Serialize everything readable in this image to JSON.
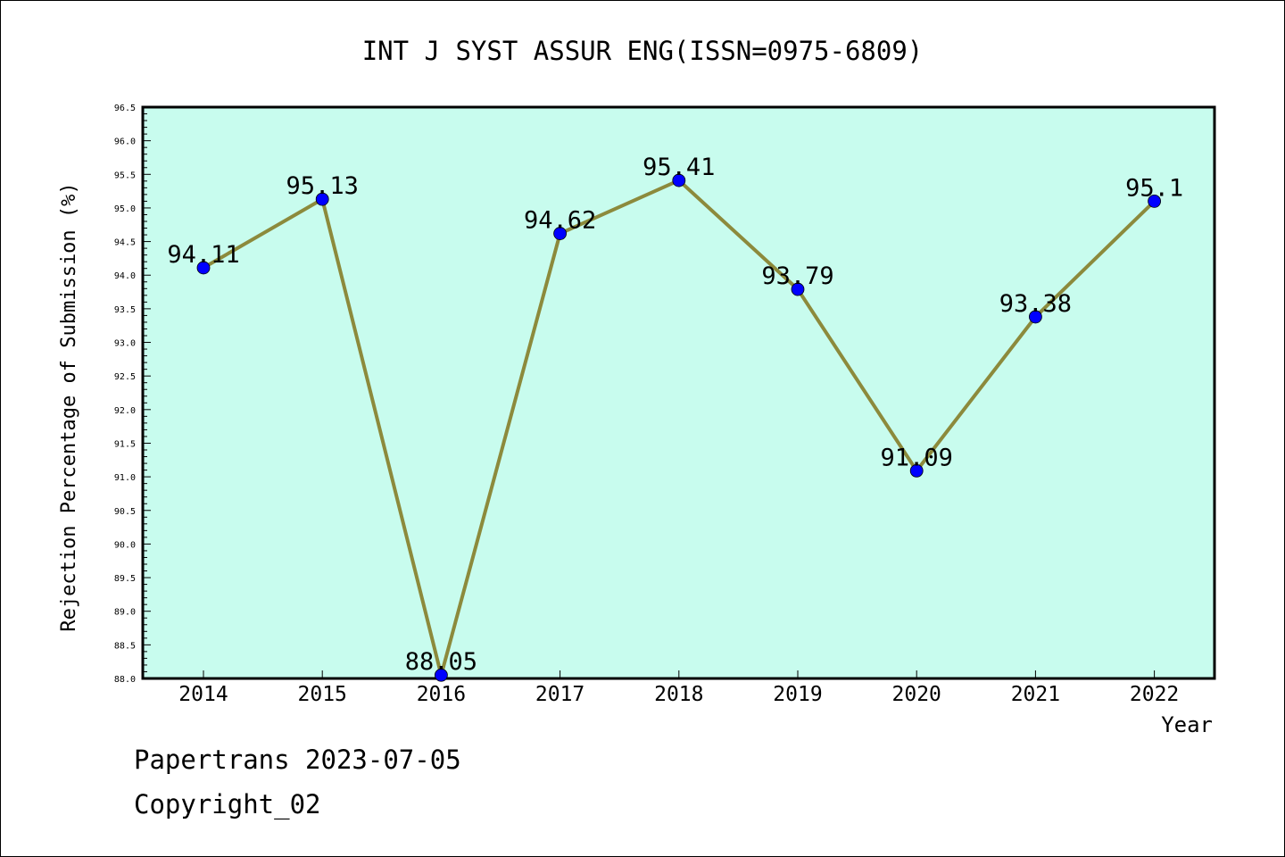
{
  "chart_data": {
    "type": "line",
    "title": "INT J SYST ASSUR ENG(ISSN=0975-6809)",
    "xlabel": "Year",
    "ylabel": "Rejection Percentage of Submission (%)",
    "categories": [
      "2014",
      "2015",
      "2016",
      "2017",
      "2018",
      "2019",
      "2020",
      "2021",
      "2022"
    ],
    "values": [
      94.11,
      95.13,
      88.05,
      94.62,
      95.41,
      93.79,
      91.09,
      93.38,
      95.1
    ],
    "data_labels": [
      "94.11",
      "95.13",
      "88.05",
      "94.62",
      "95.41",
      "93.79",
      "91.09",
      "93.38",
      "95.1"
    ],
    "ylim": [
      88.0,
      96.5
    ],
    "yticks": [
      "88.0",
      "88.5",
      "89.0",
      "89.5",
      "90.0",
      "90.5",
      "91.0",
      "91.5",
      "92.0",
      "92.5",
      "93.0",
      "93.5",
      "94.0",
      "94.5",
      "95.0",
      "95.5",
      "96.0",
      "96.5"
    ],
    "grid": false,
    "colors": {
      "plot_background": "#c8fcee",
      "line": "#8c8a3c",
      "marker": "#0000ff"
    }
  },
  "footer": {
    "source": "Papertrans 2023-07-05",
    "copyright": "Copyright_02"
  }
}
